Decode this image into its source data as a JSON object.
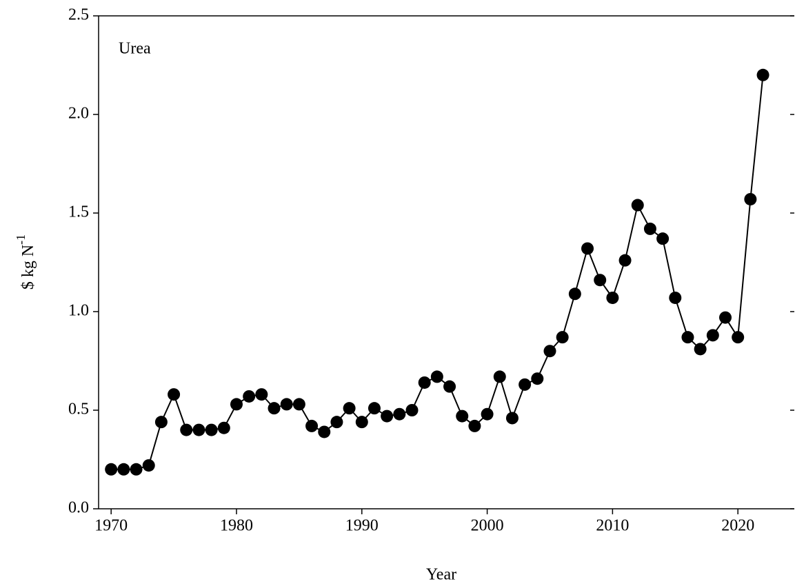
{
  "chart_data": {
    "type": "line",
    "annotation": "Urea",
    "x_label": "Year",
    "y_label": "$ kg N",
    "y_label_superscript": "-1",
    "x": [
      1970,
      1971,
      1972,
      1973,
      1974,
      1975,
      1976,
      1977,
      1978,
      1979,
      1980,
      1981,
      1982,
      1983,
      1984,
      1985,
      1986,
      1987,
      1988,
      1989,
      1990,
      1991,
      1992,
      1993,
      1994,
      1995,
      1996,
      1997,
      1998,
      1999,
      2000,
      2001,
      2002,
      2003,
      2004,
      2005,
      2006,
      2007,
      2008,
      2009,
      2010,
      2011,
      2012,
      2013,
      2014,
      2015,
      2016,
      2017,
      2018,
      2019,
      2020,
      2021,
      2022
    ],
    "series": [
      {
        "color": "#000000",
        "values": [
          0.2,
          0.2,
          0.2,
          0.22,
          0.44,
          0.58,
          0.4,
          0.4,
          0.4,
          0.41,
          0.53,
          0.57,
          0.58,
          0.51,
          0.53,
          0.53,
          0.42,
          0.39,
          0.44,
          0.51,
          0.44,
          0.51,
          0.47,
          0.48,
          0.5,
          0.64,
          0.67,
          0.62,
          0.47,
          0.42,
          0.48,
          0.67,
          0.46,
          0.63,
          0.66,
          0.8,
          0.87,
          1.09,
          1.32,
          1.16,
          1.07,
          1.26,
          1.54,
          1.42,
          1.37,
          1.07,
          0.87,
          0.81,
          0.88,
          0.97,
          0.87,
          1.57,
          2.2
        ]
      }
    ],
    "xlim": [
      1969,
      2024.5
    ],
    "ylim": [
      0,
      2.5
    ],
    "xticks": [
      1970,
      1980,
      1990,
      2000,
      2010,
      2020
    ],
    "yticks": [
      {
        "value": 0,
        "label": "0.0"
      },
      0.5,
      {
        "value": 1,
        "label": "1.0"
      },
      1.5,
      {
        "value": 2,
        "label": "2.0"
      },
      2.5
    ],
    "grid": false
  }
}
